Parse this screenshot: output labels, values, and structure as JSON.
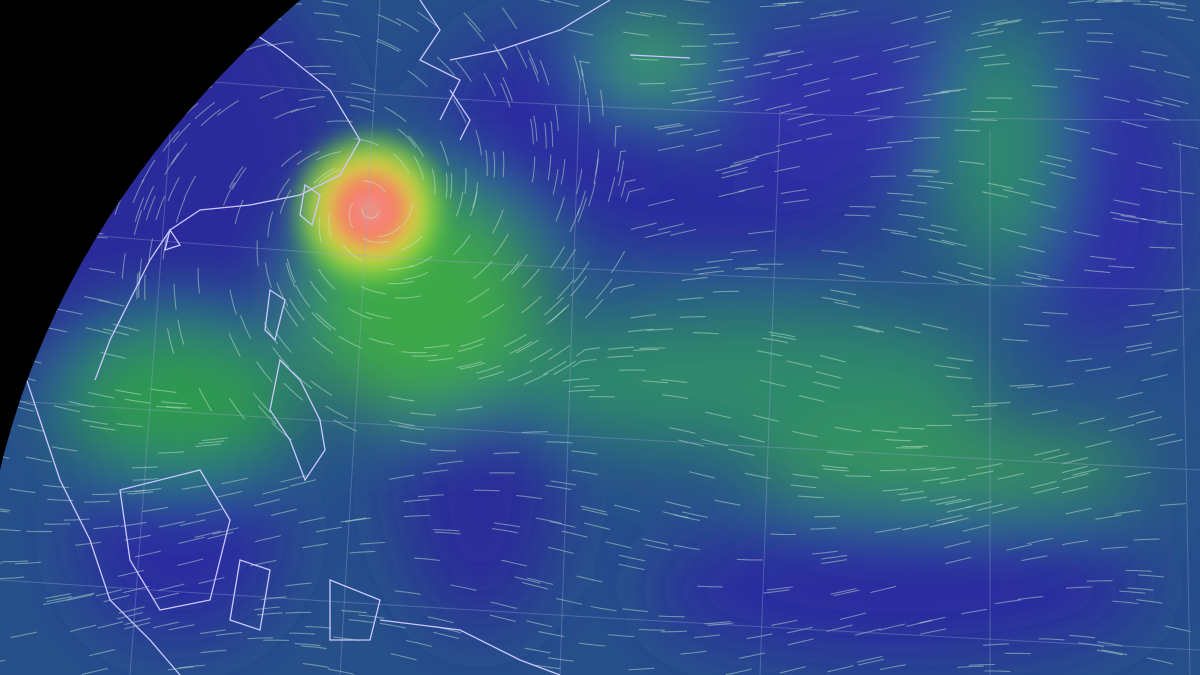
{
  "map": {
    "colors": {
      "space": "#000000",
      "calm": "#2a2a9a",
      "moderate": "#2f8a6a",
      "strong": "#6fd24a",
      "typhoon_outer": "#e0d040",
      "typhoon_core": "#ff7070",
      "eye": "#60c0e0",
      "coastline": "#c8c8ff",
      "graticule": "#9aa8d8",
      "streak": "#c8f0d0"
    },
    "features": [
      "wind-field",
      "typhoon",
      "coastlines",
      "graticule"
    ]
  }
}
